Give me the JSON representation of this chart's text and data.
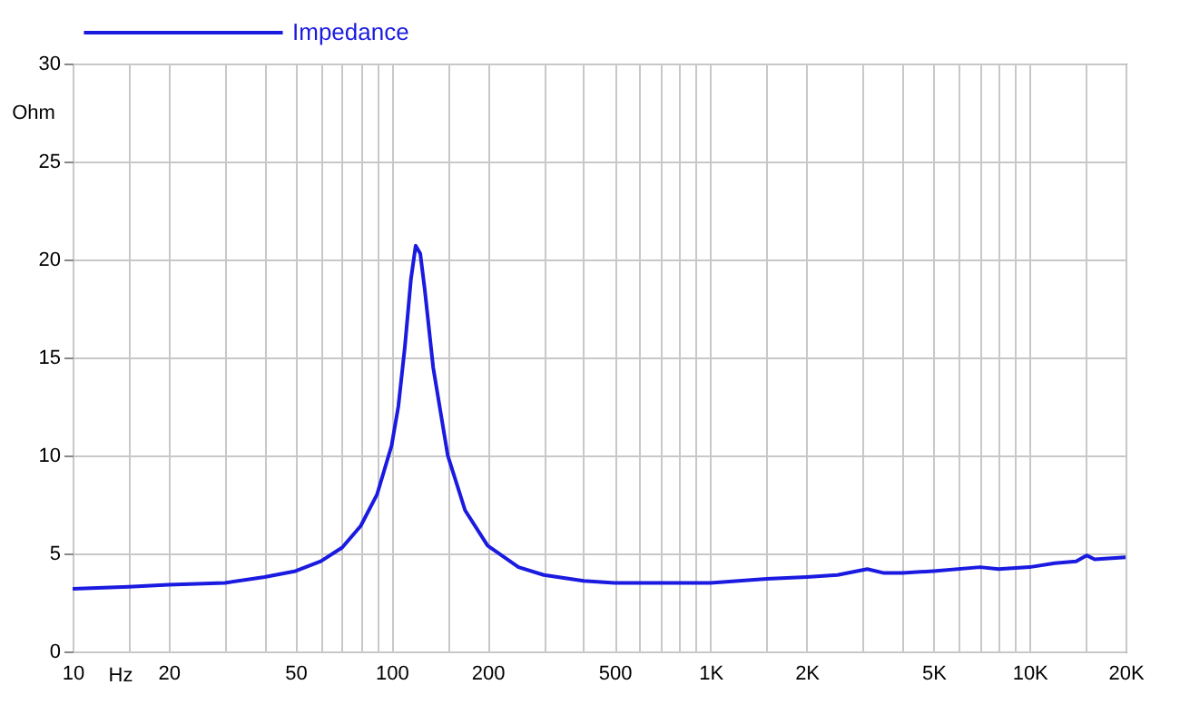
{
  "chart_data": {
    "type": "line",
    "xlabel": "Hz",
    "ylabel": "Ohm",
    "log": "x",
    "grid": true,
    "legend": "top left",
    "marker": "none",
    "line_style": "solid",
    "xlim": [
      10,
      20000
    ],
    "ylim": [
      0,
      30
    ],
    "xticks": [
      10,
      {
        "value": 15,
        "label": null
      },
      20,
      {
        "value": 30,
        "label": null
      },
      {
        "value": 40,
        "label": null
      },
      50,
      {
        "value": 60,
        "label": null
      },
      {
        "value": 70,
        "label": null
      },
      {
        "value": 80,
        "label": null
      },
      {
        "value": 90,
        "label": null
      },
      100,
      {
        "value": 150,
        "label": null
      },
      200,
      {
        "value": 300,
        "label": null
      },
      {
        "value": 400,
        "label": null
      },
      500,
      {
        "value": 600,
        "label": null
      },
      {
        "value": 700,
        "label": null
      },
      {
        "value": 800,
        "label": null
      },
      {
        "value": 900,
        "label": null
      },
      {
        "value": 1000,
        "label": "1K"
      },
      {
        "value": 1500,
        "label": null
      },
      {
        "value": 2000,
        "label": "2K"
      },
      {
        "value": 3000,
        "label": null
      },
      {
        "value": 4000,
        "label": null
      },
      {
        "value": 5000,
        "label": "5K"
      },
      {
        "value": 6000,
        "label": null
      },
      {
        "value": 7000,
        "label": null
      },
      {
        "value": 8000,
        "label": null
      },
      {
        "value": 9000,
        "label": null
      },
      {
        "value": 10000,
        "label": "10K"
      },
      {
        "value": 15000,
        "label": null
      },
      {
        "value": 20000,
        "label": "20K"
      }
    ],
    "yticks": [
      0,
      5,
      10,
      15,
      20,
      25,
      30
    ],
    "series": [
      {
        "name": "Impedance",
        "color": "#1a1ae0",
        "x": [
          10,
          15,
          20,
          30,
          40,
          50,
          60,
          70,
          80,
          90,
          100,
          105,
          110,
          115,
          119,
          123,
          127,
          135,
          150,
          170,
          200,
          250,
          300,
          400,
          500,
          700,
          1000,
          1500,
          2000,
          2500,
          3100,
          3500,
          4000,
          5000,
          7000,
          8000,
          10000,
          12000,
          14000,
          15100,
          16000,
          20000
        ],
        "values": [
          3.2,
          3.3,
          3.4,
          3.5,
          3.8,
          4.1,
          4.6,
          5.3,
          6.4,
          8.0,
          10.5,
          12.5,
          15.5,
          19.0,
          20.7,
          20.3,
          18.5,
          14.5,
          10.0,
          7.2,
          5.4,
          4.3,
          3.9,
          3.6,
          3.5,
          3.5,
          3.5,
          3.7,
          3.8,
          3.9,
          4.2,
          4.0,
          4.0,
          4.1,
          4.3,
          4.2,
          4.3,
          4.5,
          4.6,
          4.9,
          4.7,
          4.8
        ]
      }
    ]
  }
}
